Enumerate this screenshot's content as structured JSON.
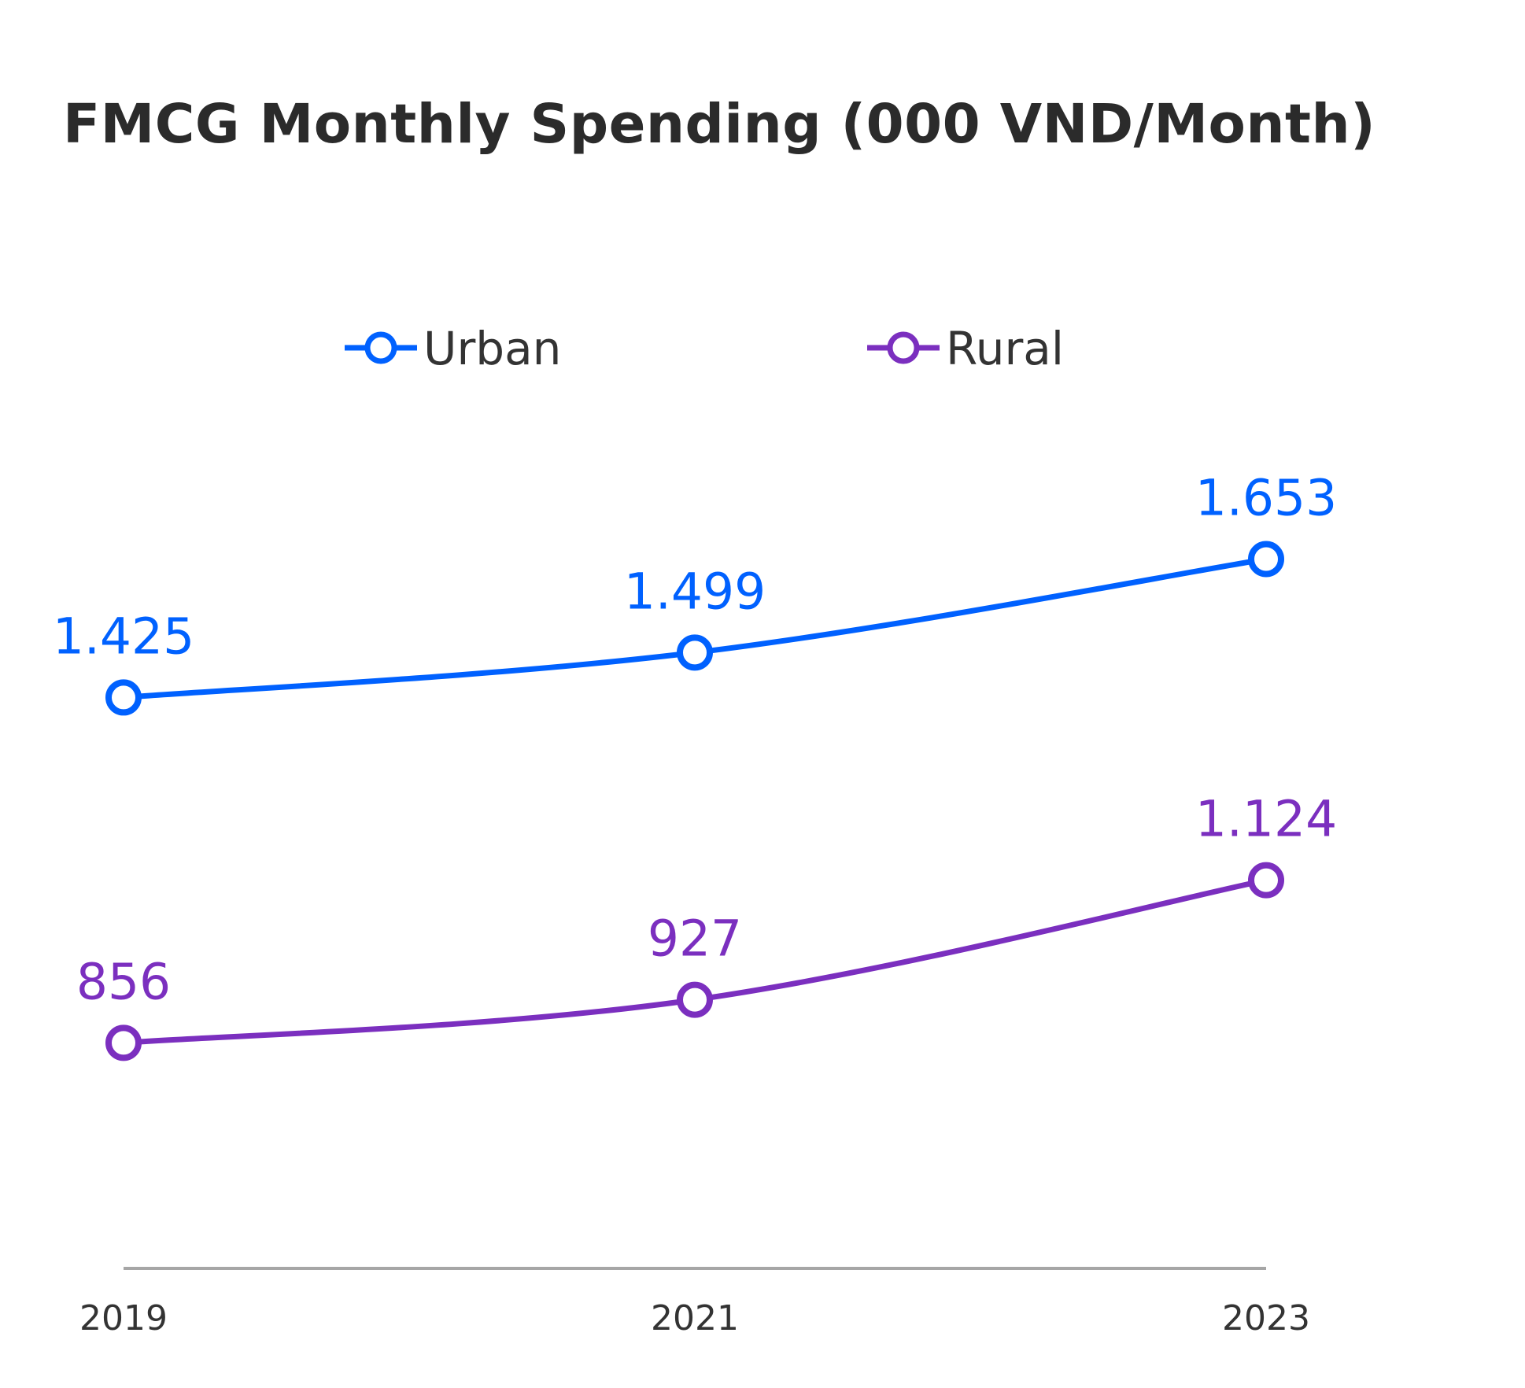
{
  "chart_data": {
    "type": "line",
    "title": "FMCG Monthly Spending (000 VND/Month)",
    "x": [
      "2019",
      "2021",
      "2023"
    ],
    "series": [
      {
        "name": "Urban",
        "color": "#0061ff",
        "values": [
          1425,
          1499,
          1653
        ],
        "labels": [
          "1.425",
          "1.499",
          "1.653"
        ]
      },
      {
        "name": "Rural",
        "color": "#7b2fbf",
        "values": [
          856,
          927,
          1124
        ],
        "labels": [
          "856",
          "927",
          "1.124"
        ]
      }
    ],
    "ylim": [
      500,
      1900
    ],
    "legend_position": "top-center",
    "grid": false,
    "axis_color": "#a6a6a6"
  }
}
